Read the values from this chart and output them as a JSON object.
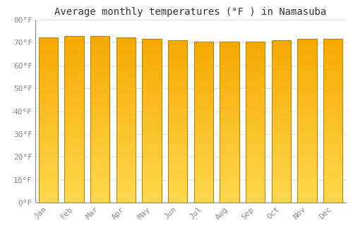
{
  "title": "Average monthly temperatures (°F ) in Namasuba",
  "months": [
    "Jan",
    "Feb",
    "Mar",
    "Apr",
    "May",
    "Jun",
    "Jul",
    "Aug",
    "Sep",
    "Oct",
    "Nov",
    "Dec"
  ],
  "values": [
    72.3,
    73.0,
    73.0,
    72.3,
    71.6,
    70.9,
    70.3,
    70.3,
    70.5,
    71.1,
    71.6,
    71.6
  ],
  "bar_color_bottom": "#FFD84D",
  "bar_color_top": "#F5A800",
  "edge_color": "#B8860B",
  "ylim": [
    0,
    80
  ],
  "ytick_step": 10,
  "background_color": "#FFFFFF",
  "grid_color": "#DDDDDD",
  "title_fontsize": 10,
  "tick_fontsize": 8,
  "bar_width": 0.75
}
